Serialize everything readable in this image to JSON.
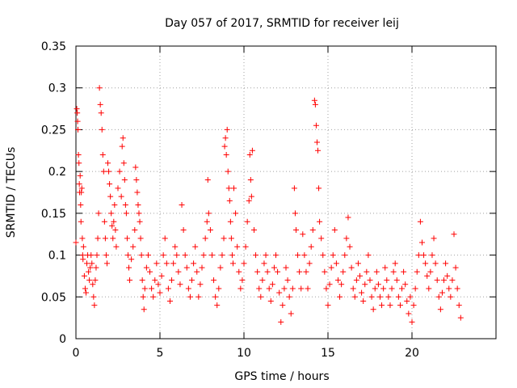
{
  "chart_data": {
    "type": "scatter",
    "title": "Day 057 of 2017, SRMTID for receiver leij",
    "xlabel": "GPS time / hours",
    "ylabel": "SRMTID / TECUs",
    "xlim": [
      0,
      25
    ],
    "ylim": [
      0,
      0.35
    ],
    "xticks": [
      0,
      5,
      10,
      15,
      20
    ],
    "yticks": [
      0,
      0.05,
      0.1,
      0.15,
      0.2,
      0.25,
      0.3,
      0.35
    ],
    "grid": true,
    "marker": "+",
    "color": "#ff0000",
    "series": [
      {
        "name": "leij",
        "points": [
          [
            0.0,
            0.115
          ],
          [
            0.05,
            0.275
          ],
          [
            0.08,
            0.27
          ],
          [
            0.1,
            0.26
          ],
          [
            0.12,
            0.25
          ],
          [
            0.15,
            0.22
          ],
          [
            0.18,
            0.21
          ],
          [
            0.2,
            0.185
          ],
          [
            0.22,
            0.175
          ],
          [
            0.25,
            0.195
          ],
          [
            0.28,
            0.16
          ],
          [
            0.3,
            0.14
          ],
          [
            0.32,
            0.175
          ],
          [
            0.35,
            0.18
          ],
          [
            0.38,
            0.12
          ],
          [
            0.4,
            0.1
          ],
          [
            0.42,
            0.095
          ],
          [
            0.45,
            0.11
          ],
          [
            0.5,
            0.075
          ],
          [
            0.55,
            0.06
          ],
          [
            0.6,
            0.055
          ],
          [
            0.65,
            0.09
          ],
          [
            0.7,
            0.1
          ],
          [
            0.75,
            0.08
          ],
          [
            0.8,
            0.07
          ],
          [
            0.85,
            0.085
          ],
          [
            0.9,
            0.1
          ],
          [
            0.95,
            0.09
          ],
          [
            1.0,
            0.065
          ],
          [
            1.05,
            0.05
          ],
          [
            1.1,
            0.04
          ],
          [
            1.15,
            0.07
          ],
          [
            1.2,
            0.085
          ],
          [
            1.25,
            0.1
          ],
          [
            1.3,
            0.12
          ],
          [
            1.35,
            0.15
          ],
          [
            1.4,
            0.3
          ],
          [
            1.45,
            0.28
          ],
          [
            1.5,
            0.27
          ],
          [
            1.55,
            0.25
          ],
          [
            1.6,
            0.22
          ],
          [
            1.65,
            0.2
          ],
          [
            1.7,
            0.14
          ],
          [
            1.75,
            0.12
          ],
          [
            1.8,
            0.1
          ],
          [
            1.85,
            0.09
          ],
          [
            1.9,
            0.21
          ],
          [
            1.95,
            0.2
          ],
          [
            2.0,
            0.185
          ],
          [
            2.05,
            0.17
          ],
          [
            2.1,
            0.15
          ],
          [
            2.15,
            0.135
          ],
          [
            2.2,
            0.12
          ],
          [
            2.25,
            0.14
          ],
          [
            2.3,
            0.16
          ],
          [
            2.35,
            0.13
          ],
          [
            2.4,
            0.11
          ],
          [
            2.5,
            0.18
          ],
          [
            2.6,
            0.2
          ],
          [
            2.7,
            0.17
          ],
          [
            2.75,
            0.23
          ],
          [
            2.8,
            0.24
          ],
          [
            2.85,
            0.21
          ],
          [
            2.9,
            0.19
          ],
          [
            2.95,
            0.16
          ],
          [
            3.0,
            0.15
          ],
          [
            3.05,
            0.12
          ],
          [
            3.1,
            0.1
          ],
          [
            3.15,
            0.085
          ],
          [
            3.2,
            0.07
          ],
          [
            3.3,
            0.095
          ],
          [
            3.4,
            0.11
          ],
          [
            3.5,
            0.13
          ],
          [
            3.55,
            0.205
          ],
          [
            3.6,
            0.19
          ],
          [
            3.65,
            0.175
          ],
          [
            3.7,
            0.16
          ],
          [
            3.75,
            0.15
          ],
          [
            3.8,
            0.14
          ],
          [
            3.85,
            0.12
          ],
          [
            3.9,
            0.1
          ],
          [
            3.95,
            0.07
          ],
          [
            4.0,
            0.05
          ],
          [
            4.05,
            0.035
          ],
          [
            4.1,
            0.06
          ],
          [
            4.2,
            0.085
          ],
          [
            4.3,
            0.1
          ],
          [
            4.4,
            0.08
          ],
          [
            4.5,
            0.06
          ],
          [
            4.6,
            0.05
          ],
          [
            4.7,
            0.07
          ],
          [
            4.8,
            0.09
          ],
          [
            4.9,
            0.065
          ],
          [
            5.0,
            0.055
          ],
          [
            5.1,
            0.075
          ],
          [
            5.2,
            0.1
          ],
          [
            5.3,
            0.12
          ],
          [
            5.4,
            0.09
          ],
          [
            5.5,
            0.06
          ],
          [
            5.6,
            0.045
          ],
          [
            5.7,
            0.07
          ],
          [
            5.8,
            0.09
          ],
          [
            5.9,
            0.11
          ],
          [
            6.0,
            0.1
          ],
          [
            6.1,
            0.08
          ],
          [
            6.2,
            0.065
          ],
          [
            6.3,
            0.16
          ],
          [
            6.4,
            0.13
          ],
          [
            6.5,
            0.1
          ],
          [
            6.6,
            0.085
          ],
          [
            6.7,
            0.06
          ],
          [
            6.8,
            0.05
          ],
          [
            6.9,
            0.07
          ],
          [
            7.0,
            0.09
          ],
          [
            7.1,
            0.11
          ],
          [
            7.2,
            0.08
          ],
          [
            7.3,
            0.05
          ],
          [
            7.4,
            0.065
          ],
          [
            7.5,
            0.085
          ],
          [
            7.6,
            0.1
          ],
          [
            7.7,
            0.12
          ],
          [
            7.8,
            0.14
          ],
          [
            7.85,
            0.19
          ],
          [
            7.9,
            0.15
          ],
          [
            8.0,
            0.13
          ],
          [
            8.1,
            0.1
          ],
          [
            8.2,
            0.07
          ],
          [
            8.3,
            0.05
          ],
          [
            8.4,
            0.04
          ],
          [
            8.5,
            0.06
          ],
          [
            8.6,
            0.085
          ],
          [
            8.7,
            0.1
          ],
          [
            8.8,
            0.12
          ],
          [
            8.85,
            0.23
          ],
          [
            8.9,
            0.24
          ],
          [
            8.95,
            0.22
          ],
          [
            9.0,
            0.25
          ],
          [
            9.05,
            0.2
          ],
          [
            9.1,
            0.18
          ],
          [
            9.15,
            0.165
          ],
          [
            9.2,
            0.14
          ],
          [
            9.25,
            0.12
          ],
          [
            9.3,
            0.1
          ],
          [
            9.35,
            0.09
          ],
          [
            9.4,
            0.18
          ],
          [
            9.5,
            0.15
          ],
          [
            9.6,
            0.11
          ],
          [
            9.7,
            0.08
          ],
          [
            9.8,
            0.06
          ],
          [
            9.9,
            0.07
          ],
          [
            10.0,
            0.09
          ],
          [
            10.1,
            0.11
          ],
          [
            10.2,
            0.14
          ],
          [
            10.3,
            0.165
          ],
          [
            10.35,
            0.22
          ],
          [
            10.4,
            0.19
          ],
          [
            10.45,
            0.17
          ],
          [
            10.5,
            0.225
          ],
          [
            10.6,
            0.13
          ],
          [
            10.7,
            0.1
          ],
          [
            10.8,
            0.08
          ],
          [
            10.9,
            0.06
          ],
          [
            11.0,
            0.05
          ],
          [
            11.1,
            0.07
          ],
          [
            11.2,
            0.09
          ],
          [
            11.3,
            0.1
          ],
          [
            11.4,
            0.08
          ],
          [
            11.5,
            0.06
          ],
          [
            11.6,
            0.045
          ],
          [
            11.7,
            0.065
          ],
          [
            11.8,
            0.085
          ],
          [
            11.9,
            0.1
          ],
          [
            12.0,
            0.08
          ],
          [
            12.1,
            0.055
          ],
          [
            12.2,
            0.02
          ],
          [
            12.3,
            0.04
          ],
          [
            12.4,
            0.06
          ],
          [
            12.5,
            0.085
          ],
          [
            12.6,
            0.07
          ],
          [
            12.7,
            0.05
          ],
          [
            12.8,
            0.03
          ],
          [
            12.9,
            0.06
          ],
          [
            13.0,
            0.18
          ],
          [
            13.05,
            0.15
          ],
          [
            13.1,
            0.13
          ],
          [
            13.2,
            0.1
          ],
          [
            13.3,
            0.08
          ],
          [
            13.4,
            0.06
          ],
          [
            13.5,
            0.125
          ],
          [
            13.6,
            0.1
          ],
          [
            13.7,
            0.08
          ],
          [
            13.8,
            0.06
          ],
          [
            13.9,
            0.09
          ],
          [
            14.0,
            0.11
          ],
          [
            14.1,
            0.13
          ],
          [
            14.2,
            0.285
          ],
          [
            14.25,
            0.28
          ],
          [
            14.3,
            0.255
          ],
          [
            14.35,
            0.235
          ],
          [
            14.4,
            0.225
          ],
          [
            14.45,
            0.18
          ],
          [
            14.5,
            0.14
          ],
          [
            14.6,
            0.12
          ],
          [
            14.7,
            0.1
          ],
          [
            14.8,
            0.08
          ],
          [
            14.9,
            0.06
          ],
          [
            15.0,
            0.04
          ],
          [
            15.1,
            0.065
          ],
          [
            15.2,
            0.085
          ],
          [
            15.3,
            0.1
          ],
          [
            15.4,
            0.13
          ],
          [
            15.5,
            0.09
          ],
          [
            15.6,
            0.07
          ],
          [
            15.7,
            0.05
          ],
          [
            15.8,
            0.065
          ],
          [
            15.9,
            0.08
          ],
          [
            16.0,
            0.1
          ],
          [
            16.1,
            0.12
          ],
          [
            16.2,
            0.145
          ],
          [
            16.3,
            0.11
          ],
          [
            16.4,
            0.085
          ],
          [
            16.5,
            0.06
          ],
          [
            16.6,
            0.05
          ],
          [
            16.7,
            0.07
          ],
          [
            16.8,
            0.09
          ],
          [
            16.9,
            0.075
          ],
          [
            17.0,
            0.055
          ],
          [
            17.1,
            0.045
          ],
          [
            17.2,
            0.065
          ],
          [
            17.3,
            0.08
          ],
          [
            17.4,
            0.1
          ],
          [
            17.5,
            0.07
          ],
          [
            17.6,
            0.05
          ],
          [
            17.7,
            0.035
          ],
          [
            17.8,
            0.06
          ],
          [
            17.9,
            0.08
          ],
          [
            18.0,
            0.065
          ],
          [
            18.1,
            0.05
          ],
          [
            18.2,
            0.04
          ],
          [
            18.3,
            0.06
          ],
          [
            18.4,
            0.085
          ],
          [
            18.5,
            0.07
          ],
          [
            18.6,
            0.05
          ],
          [
            18.7,
            0.04
          ],
          [
            18.8,
            0.06
          ],
          [
            18.9,
            0.08
          ],
          [
            19.0,
            0.09
          ],
          [
            19.1,
            0.07
          ],
          [
            19.2,
            0.05
          ],
          [
            19.3,
            0.04
          ],
          [
            19.4,
            0.06
          ],
          [
            19.5,
            0.08
          ],
          [
            19.6,
            0.065
          ],
          [
            19.7,
            0.045
          ],
          [
            19.8,
            0.03
          ],
          [
            19.9,
            0.05
          ],
          [
            20.0,
            0.02
          ],
          [
            20.1,
            0.04
          ],
          [
            20.2,
            0.06
          ],
          [
            20.3,
            0.08
          ],
          [
            20.4,
            0.1
          ],
          [
            20.5,
            0.14
          ],
          [
            20.6,
            0.115
          ],
          [
            20.7,
            0.1
          ],
          [
            20.8,
            0.09
          ],
          [
            20.9,
            0.075
          ],
          [
            21.0,
            0.06
          ],
          [
            21.1,
            0.08
          ],
          [
            21.2,
            0.1
          ],
          [
            21.3,
            0.12
          ],
          [
            21.4,
            0.09
          ],
          [
            21.5,
            0.07
          ],
          [
            21.6,
            0.05
          ],
          [
            21.7,
            0.035
          ],
          [
            21.8,
            0.055
          ],
          [
            21.9,
            0.07
          ],
          [
            22.0,
            0.09
          ],
          [
            22.1,
            0.075
          ],
          [
            22.2,
            0.06
          ],
          [
            22.3,
            0.05
          ],
          [
            22.4,
            0.07
          ],
          [
            22.5,
            0.125
          ],
          [
            22.6,
            0.085
          ],
          [
            22.7,
            0.06
          ],
          [
            22.8,
            0.04
          ],
          [
            22.9,
            0.025
          ]
        ]
      }
    ]
  }
}
